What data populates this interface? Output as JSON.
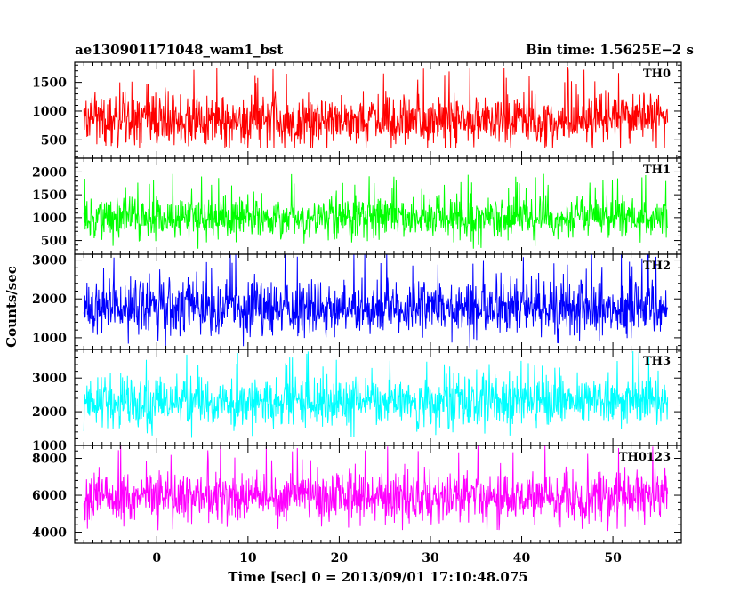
{
  "header": {
    "left_title": "ae130901171048_wam1_bst",
    "right_title": "Bin time: 1.5625E−2 s"
  },
  "chart_data": {
    "type": "line",
    "xlabel": "Time [sec] 0 = 2013/09/01 17:10:48.075",
    "ylabel": "Counts/sec",
    "xlim": [
      -9,
      57.5
    ],
    "x_range_data": [
      -8,
      56
    ],
    "bin_time_s": 0.015625,
    "x_ticks": [
      0,
      10,
      20,
      30,
      40,
      50
    ],
    "x_tick_labels": [
      "0",
      "10",
      "20",
      "30",
      "40",
      "50"
    ],
    "panels": [
      {
        "name": "TH0",
        "color": "#ff0000",
        "ylim": [
          180,
          1850
        ],
        "yticks": [
          500,
          1000,
          1500
        ],
        "ytick_labels": [
          "500",
          "1000",
          "1500"
        ],
        "mean": 850,
        "sd": 220,
        "min": 350,
        "max": 1850
      },
      {
        "name": "TH1",
        "color": "#00ff00",
        "ylim": [
          200,
          2300
        ],
        "yticks": [
          500,
          1000,
          1500,
          2000
        ],
        "ytick_labels": [
          "500",
          "1000",
          "1500",
          "2000"
        ],
        "mean": 1000,
        "sd": 230,
        "min": 320,
        "max": 2150
      },
      {
        "name": "TH2",
        "color": "#0000ff",
        "ylim": [
          700,
          3150
        ],
        "yticks": [
          1000,
          2000,
          3000
        ],
        "ytick_labels": [
          "1000",
          "2000",
          "3000"
        ],
        "mean": 1750,
        "sd": 370,
        "min": 750,
        "max": 3150
      },
      {
        "name": "TH3",
        "color": "#00ffff",
        "ylim": [
          1000,
          3850
        ],
        "yticks": [
          1000,
          2000,
          3000
        ],
        "ytick_labels": [
          "1000",
          "2000",
          "3000"
        ],
        "mean": 2300,
        "sd": 360,
        "min": 1050,
        "max": 3850
      },
      {
        "name": "TH0123",
        "color": "#ff00ff",
        "ylim": [
          3400,
          8700
        ],
        "yticks": [
          4000,
          6000,
          8000
        ],
        "ytick_labels": [
          "4000",
          "6000",
          "8000"
        ],
        "mean": 5900,
        "sd": 700,
        "min": 3450,
        "max": 8700
      }
    ]
  }
}
